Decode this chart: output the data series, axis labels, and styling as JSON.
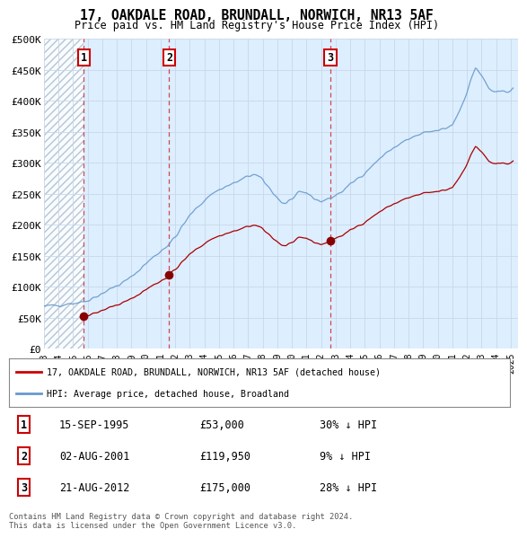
{
  "title": "17, OAKDALE ROAD, BRUNDALL, NORWICH, NR13 5AF",
  "subtitle": "Price paid vs. HM Land Registry's House Price Index (HPI)",
  "ylim": [
    0,
    500000
  ],
  "yticks": [
    0,
    50000,
    100000,
    150000,
    200000,
    250000,
    300000,
    350000,
    400000,
    450000,
    500000
  ],
  "ytick_labels": [
    "£0",
    "£50K",
    "£100K",
    "£150K",
    "£200K",
    "£250K",
    "£300K",
    "£350K",
    "£400K",
    "£450K",
    "£500K"
  ],
  "xlim_start": 1993.0,
  "xlim_end": 2025.5,
  "sale_dates": [
    1995.71,
    2001.585,
    2012.635
  ],
  "sale_prices": [
    53000,
    119950,
    175000
  ],
  "sale_labels": [
    "1",
    "2",
    "3"
  ],
  "sale_info": [
    {
      "label": "1",
      "date": "15-SEP-1995",
      "price": "£53,000",
      "hpi": "30% ↓ HPI"
    },
    {
      "label": "2",
      "date": "02-AUG-2001",
      "price": "£119,950",
      "hpi": "9% ↓ HPI"
    },
    {
      "label": "3",
      "date": "21-AUG-2012",
      "price": "£175,000",
      "hpi": "28% ↓ HPI"
    }
  ],
  "legend_entries": [
    {
      "label": "17, OAKDALE ROAD, BRUNDALL, NORWICH, NR13 5AF (detached house)",
      "color": "#cc0000"
    },
    {
      "label": "HPI: Average price, detached house, Broadland",
      "color": "#6699cc"
    }
  ],
  "footnote": "Contains HM Land Registry data © Crown copyright and database right 2024.\nThis data is licensed under the Open Government Licence v3.0.",
  "bg_color": "#ffffff",
  "grid_color": "#c8d8e8",
  "plot_bg": "#ddeeff",
  "red_line_color": "#aa0000",
  "blue_line_color": "#6699cc",
  "sale_marker_color": "#880000",
  "vline_color": "#cc0000",
  "xtick_years": [
    1993,
    1994,
    1995,
    1996,
    1997,
    1998,
    1999,
    2000,
    2001,
    2002,
    2003,
    2004,
    2005,
    2006,
    2007,
    2008,
    2009,
    2010,
    2011,
    2012,
    2013,
    2014,
    2015,
    2016,
    2017,
    2018,
    2019,
    2020,
    2021,
    2022,
    2023,
    2024,
    2025
  ]
}
